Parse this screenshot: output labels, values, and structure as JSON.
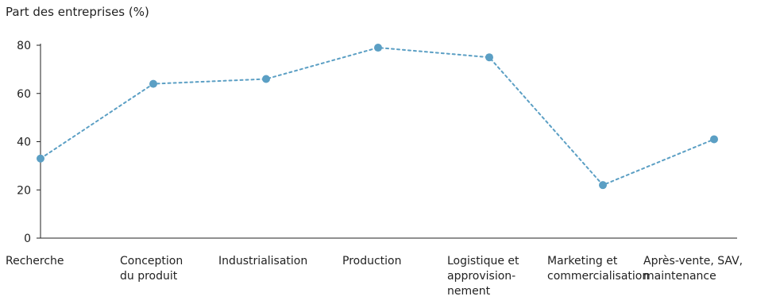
{
  "chart_data": {
    "type": "line",
    "title": "",
    "ylabel": "Part des entreprises (%)",
    "xlabel": "",
    "ylim": [
      0,
      80
    ],
    "yticks": [
      "0",
      "20",
      "40",
      "60",
      "80"
    ],
    "grid": false,
    "categories": [
      [
        "Recherche"
      ],
      [
        "Conception",
        "du produit"
      ],
      [
        "Industrialisation"
      ],
      [
        "Production"
      ],
      [
        "Logistique et",
        "approvision-",
        "nement"
      ],
      [
        "Marketing et",
        "commercialisation"
      ],
      [
        "Après-vente, SAV,",
        "maintenance"
      ]
    ],
    "series": [
      {
        "values": [
          33,
          64,
          66,
          79,
          75,
          22,
          41
        ],
        "color": "#5b9fc4",
        "line_style": "dotted"
      }
    ]
  }
}
